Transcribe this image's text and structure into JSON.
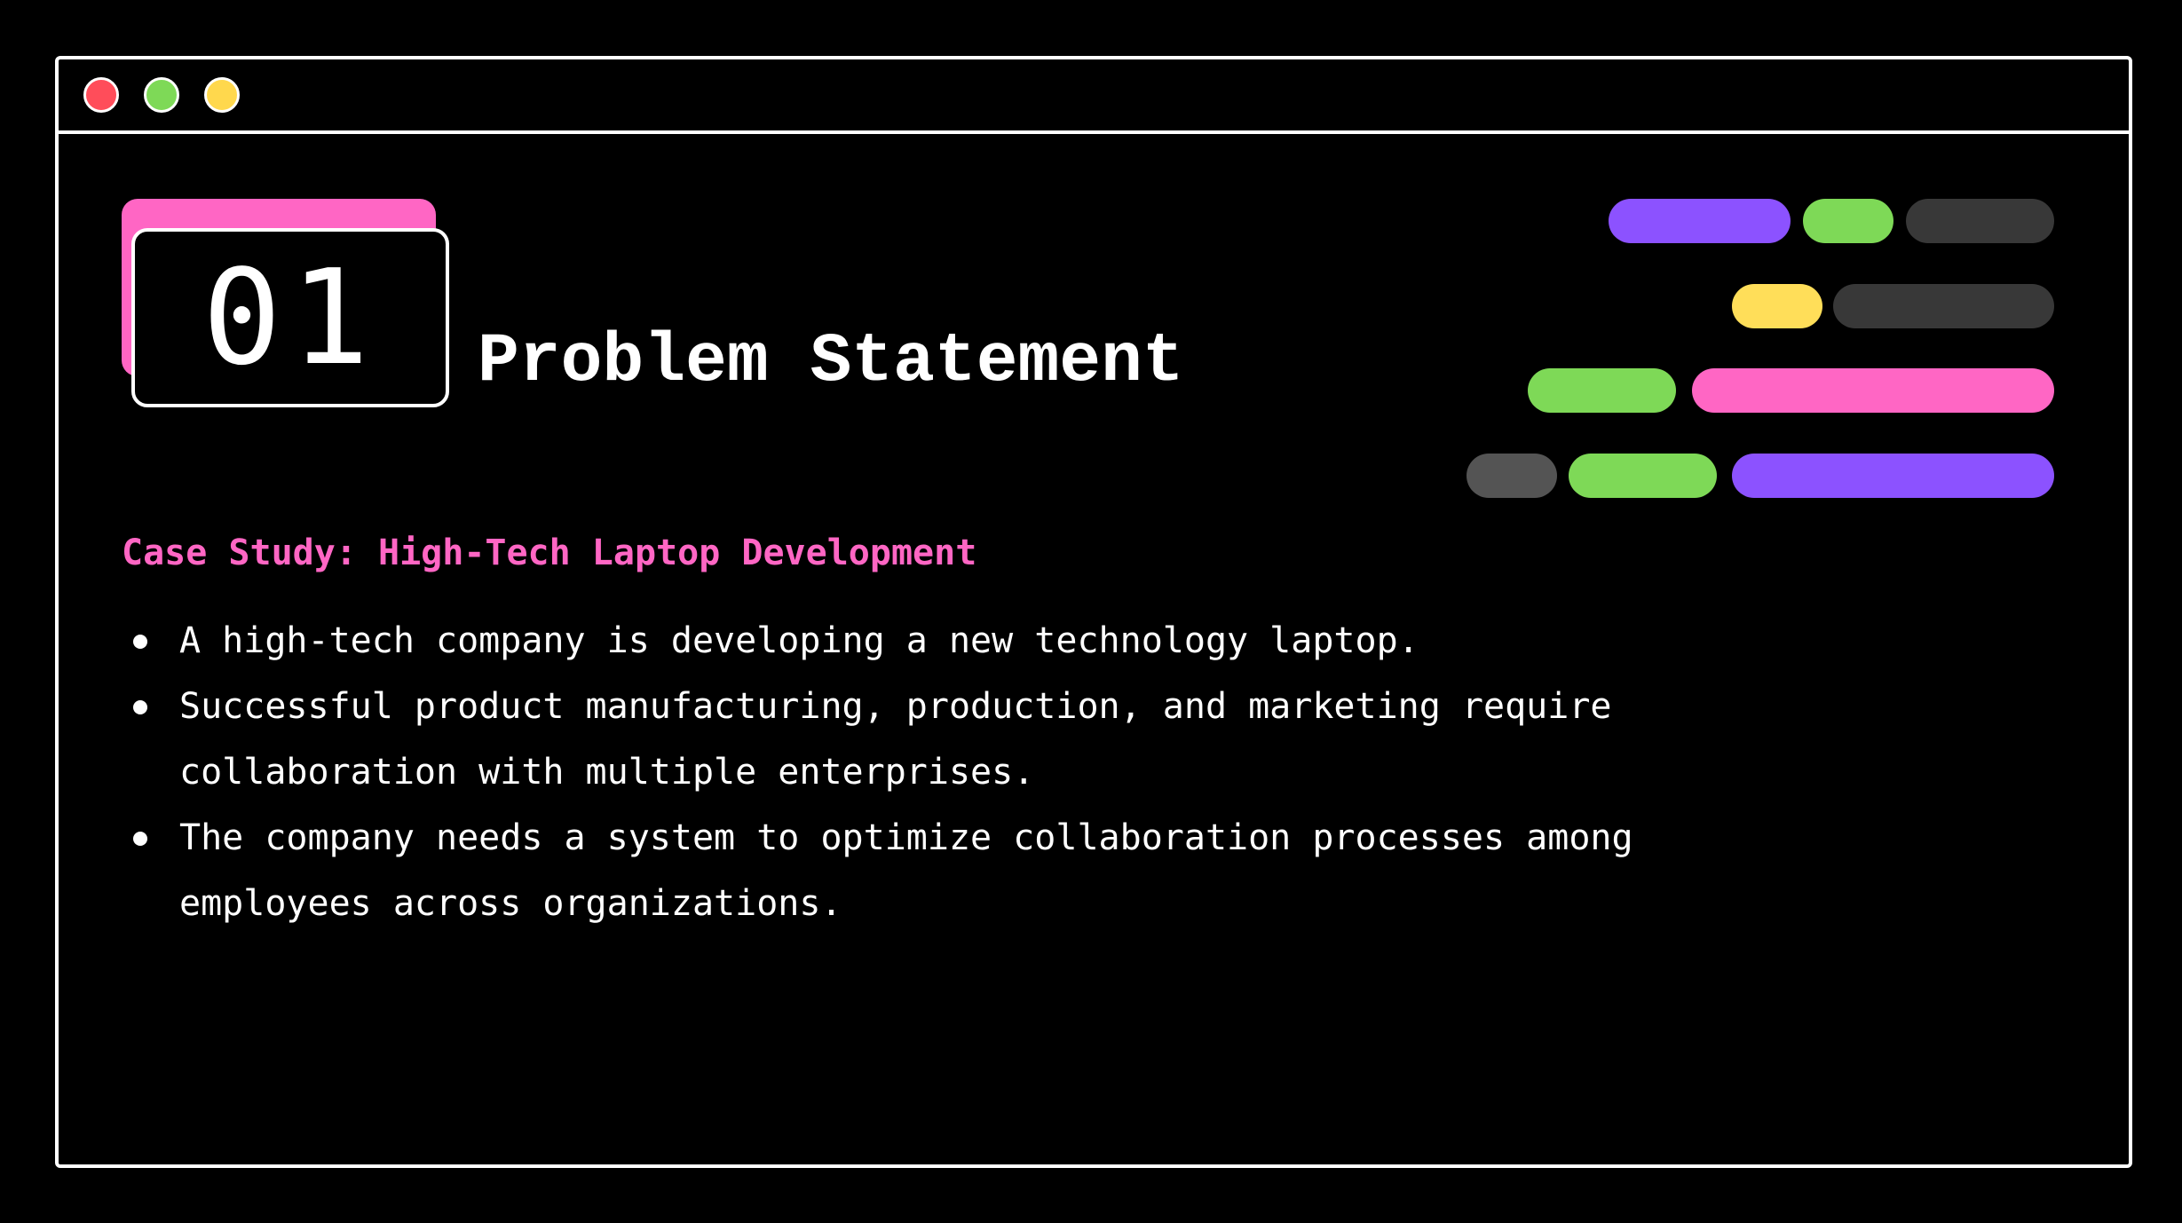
{
  "window": {
    "controls": [
      {
        "name": "close",
        "color": "#ff4d5a"
      },
      {
        "name": "minimize",
        "color": "#7ed957"
      },
      {
        "name": "maximize",
        "color": "#ffd84d"
      }
    ]
  },
  "header": {
    "number": "01",
    "title": "Problem Statement"
  },
  "case_study": {
    "heading": "Case Study: High-Tech Laptop Development",
    "bullets": [
      "A high-tech company is developing a new technology laptop.",
      "Successful product manufacturing, production, and marketing require collaboration with multiple enterprises.",
      "The company needs a system to optimize collaboration processes among employees across organizations."
    ]
  },
  "colors": {
    "background": "#000000",
    "foreground": "#ffffff",
    "accent_pink": "#ff66c4",
    "accent_purple": "#8c52ff",
    "accent_green": "#7ed957",
    "accent_yellow": "#ffde59",
    "accent_dark": "#383838",
    "accent_gray": "#545454"
  }
}
